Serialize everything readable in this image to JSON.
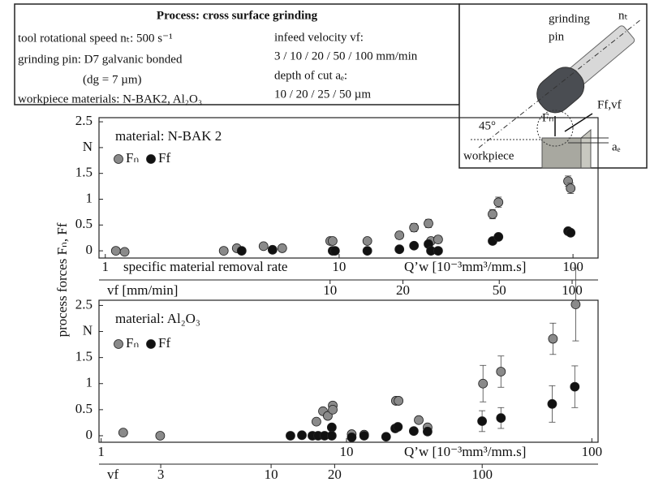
{
  "process_box": {
    "title": "Process: cross surface grinding",
    "left": [
      "tool rotational speed nₜ: 500 s⁻¹",
      "grinding pin: D7 galvanic bonded",
      "(dg = 7 µm)",
      "workpiece  materials: N-BAK2, Al₂O₃"
    ],
    "right": [
      "infeed velocity vf:",
      "3 / 10 / 20 / 50 / 100 mm/min",
      "depth of cut aₑ:",
      "10 / 20 / 25 / 50 µm"
    ]
  },
  "diagram": {
    "pin_label": [
      "grinding",
      "pin"
    ],
    "speed": "nₜ",
    "angle": "45°",
    "normal_force": "Fₙ",
    "feed_force": "Ff,vf",
    "depth": "aₑ",
    "workpiece": "workpiece"
  },
  "chart_data": [
    {
      "type": "scatter",
      "label": "material: N-BAK 2",
      "ylabel": "process forces Fₙ, Ff",
      "xlabel": "Q’w [10⁻³mm³/mm.s]",
      "xlabel_note": "specific material removal rate",
      "xlog": true,
      "xlim": [
        0.94,
        128
      ],
      "xticks": [
        1,
        10,
        100
      ],
      "ylim": [
        -0.14,
        2.58
      ],
      "yticks": [
        0,
        0.5,
        1,
        1.5,
        {
          "value": 2,
          "label": "N"
        },
        2.5
      ],
      "x2label": "vf [mm/min]",
      "x2lim": [
        1.11,
        128
      ],
      "x2ticks": [
        10,
        20,
        50,
        100
      ],
      "series": [
        {
          "name": "Fₙ",
          "color": "#8a8a8a",
          "x": [
            1.11,
            1.21,
            3.21,
            3.65,
            4.75,
            5.71,
            9.16,
            9.38,
            13.2,
            18.1,
            20.9,
            24.1,
            24.7,
            26.5,
            45.3,
            48.0,
            95.3,
            97.7
          ],
          "values": [
            0.0,
            -0.02,
            0.0,
            0.05,
            0.09,
            0.05,
            0.19,
            0.19,
            0.19,
            0.3,
            0.45,
            0.53,
            0.19,
            0.22,
            0.71,
            0.94,
            1.35,
            1.21
          ],
          "errors": [
            0.03,
            0.02,
            0.04,
            0.05,
            0.05,
            0.05,
            0.06,
            0.06,
            0.06,
            0.07,
            0.08,
            0.08,
            0.06,
            0.07,
            0.09,
            0.1,
            0.1,
            0.1
          ]
        },
        {
          "name": "Ff",
          "color": "#111111",
          "x": [
            3.83,
            5.19,
            9.38,
            9.6,
            13.2,
            18.1,
            20.9,
            24.1,
            24.7,
            26.5,
            45.3,
            48.0,
            95.3,
            97.7
          ],
          "values": [
            0.0,
            0.02,
            0.0,
            0.0,
            0.0,
            0.03,
            0.1,
            0.13,
            0.0,
            0.0,
            0.19,
            0.27,
            0.38,
            0.35
          ],
          "errors": [
            0.02,
            0.02,
            0.02,
            0.02,
            0.02,
            0.02,
            0.03,
            0.03,
            0.02,
            0.02,
            0.03,
            0.03,
            0.04,
            0.04
          ]
        }
      ]
    },
    {
      "type": "scatter",
      "label": "material: Al₂O₃",
      "xlabel": "Q’w [10⁻³mm³/mm.s]",
      "xlog": true,
      "xlim": [
        0.98,
        106
      ],
      "xticks": [
        1,
        10,
        100
      ],
      "ylim": [
        -0.125,
        2.6
      ],
      "yticks": [
        0,
        0.5,
        1,
        1.5,
        {
          "value": 2,
          "label": "N"
        },
        2.5
      ],
      "x2label": "vf",
      "x2lim": [
        1.53,
        354
      ],
      "x2ticks": [
        3,
        10,
        20,
        100
      ],
      "series": [
        {
          "name": "Fₙ",
          "color": "#8a8a8a",
          "x": [
            1.23,
            1.74,
            7.54,
            8.02,
            8.39,
            8.79,
            8.79,
            10.5,
            11.8,
            15.9,
            16.3,
            19.7,
            21.4,
            36.0,
            42.6,
            69.4,
            85.9
          ],
          "values": [
            0.06,
            0.0,
            0.27,
            0.47,
            0.38,
            0.58,
            0.5,
            0.03,
            0.02,
            0.67,
            0.67,
            0.3,
            0.16,
            1.0,
            1.23,
            1.86,
            2.52
          ],
          "errors": [
            0.04,
            0.04,
            0.05,
            0.05,
            0.05,
            0.06,
            0.05,
            0.04,
            0.04,
            0.06,
            0.06,
            0.05,
            0.05,
            0.35,
            0.3,
            0.3,
            0.7
          ]
        },
        {
          "name": "Ff",
          "color": "#111111",
          "x": [
            5.91,
            6.58,
            7.26,
            7.66,
            8.14,
            8.71,
            8.71,
            10.5,
            11.8,
            14.5,
            15.8,
            16.2,
            18.8,
            21.4,
            35.7,
            42.6,
            68.9,
            85.2
          ],
          "values": [
            0.0,
            0.01,
            0.0,
            0.0,
            0.0,
            0.16,
            0.0,
            -0.03,
            0.0,
            -0.02,
            0.14,
            0.17,
            0.09,
            0.08,
            0.28,
            0.34,
            0.61,
            0.94
          ],
          "errors": [
            0.02,
            0.02,
            0.02,
            0.02,
            0.02,
            0.03,
            0.02,
            0.02,
            0.02,
            0.02,
            0.03,
            0.03,
            0.03,
            0.03,
            0.2,
            0.2,
            0.35,
            0.4
          ]
        }
      ]
    }
  ]
}
